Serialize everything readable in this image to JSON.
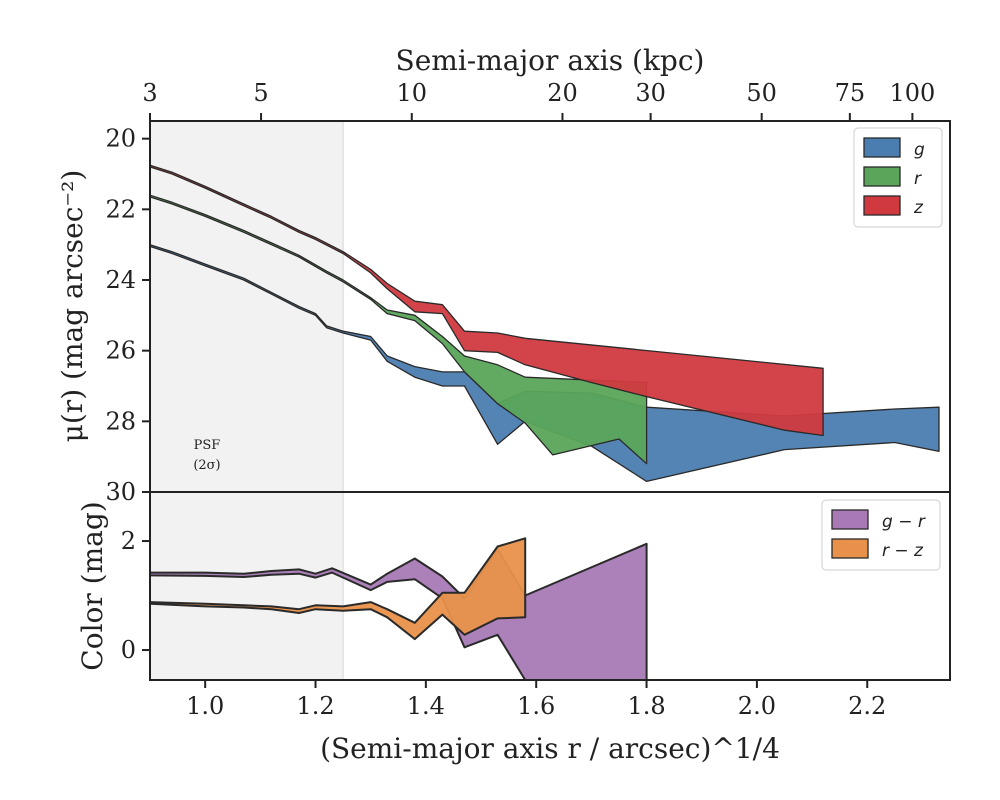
{
  "chart_data": [
    {
      "type": "area",
      "panel": "top",
      "ylabel": "μ(r) (mag arcsec⁻²)",
      "top_xlabel": "Semi-major axis (kpc)",
      "top_ticks": [
        "3",
        "5",
        "10",
        "20",
        "30",
        "50",
        "75",
        "100"
      ],
      "top_tick_values_kpc": [
        3,
        5,
        10,
        20,
        30,
        50,
        75,
        100
      ],
      "xlim": [
        0.9,
        2.35
      ],
      "ylim": [
        30,
        19.5
      ],
      "y_ticks": [
        "20",
        "22",
        "24",
        "26",
        "28",
        "30"
      ],
      "y_tick_values": [
        20,
        22,
        24,
        26,
        28,
        30
      ],
      "legend": [
        "g",
        "r",
        "z"
      ],
      "legend_position": "top-right",
      "psf_label": [
        "PSF",
        "(2σ)"
      ],
      "psf_x_max": 1.25,
      "series": [
        {
          "name": "g",
          "color": "#4a7db0",
          "upper": [
            [
              0.9,
              23.0
            ],
            [
              0.94,
              23.2
            ],
            [
              1.0,
              23.55
            ],
            [
              1.07,
              23.95
            ],
            [
              1.12,
              24.35
            ],
            [
              1.17,
              24.75
            ],
            [
              1.2,
              24.95
            ],
            [
              1.22,
              25.3
            ],
            [
              1.25,
              25.45
            ],
            [
              1.3,
              25.6
            ],
            [
              1.33,
              26.15
            ],
            [
              1.38,
              26.45
            ],
            [
              1.43,
              26.6
            ],
            [
              1.47,
              26.6
            ],
            [
              1.53,
              27.5
            ],
            [
              1.58,
              27.15
            ],
            [
              1.7,
              27.2
            ],
            [
              1.8,
              27.6
            ],
            [
              2.05,
              27.85
            ],
            [
              2.25,
              27.65
            ],
            [
              2.33,
              27.6
            ]
          ],
          "lower": [
            [
              0.9,
              23.05
            ],
            [
              0.94,
              23.25
            ],
            [
              1.0,
              23.6
            ],
            [
              1.07,
              24.0
            ],
            [
              1.12,
              24.4
            ],
            [
              1.17,
              24.8
            ],
            [
              1.2,
              25.0
            ],
            [
              1.22,
              25.35
            ],
            [
              1.25,
              25.5
            ],
            [
              1.3,
              25.7
            ],
            [
              1.33,
              26.3
            ],
            [
              1.38,
              26.75
            ],
            [
              1.43,
              27.0
            ],
            [
              1.47,
              27.0
            ],
            [
              1.53,
              28.65
            ],
            [
              1.58,
              28.0
            ],
            [
              1.7,
              28.7
            ],
            [
              1.8,
              29.7
            ],
            [
              2.05,
              28.8
            ],
            [
              2.25,
              28.6
            ],
            [
              2.33,
              28.85
            ]
          ]
        },
        {
          "name": "r",
          "color": "#5aa55a",
          "upper": [
            [
              0.9,
              21.6
            ],
            [
              0.94,
              21.8
            ],
            [
              1.0,
              22.15
            ],
            [
              1.07,
              22.6
            ],
            [
              1.12,
              22.95
            ],
            [
              1.17,
              23.3
            ],
            [
              1.22,
              23.75
            ],
            [
              1.25,
              24.0
            ],
            [
              1.3,
              24.5
            ],
            [
              1.33,
              24.85
            ],
            [
              1.38,
              25.0
            ],
            [
              1.43,
              25.6
            ],
            [
              1.47,
              26.15
            ],
            [
              1.53,
              26.4
            ],
            [
              1.58,
              26.75
            ],
            [
              1.8,
              26.9
            ]
          ],
          "lower": [
            [
              0.9,
              21.65
            ],
            [
              0.94,
              21.85
            ],
            [
              1.0,
              22.2
            ],
            [
              1.07,
              22.65
            ],
            [
              1.12,
              23.0
            ],
            [
              1.17,
              23.35
            ],
            [
              1.22,
              23.8
            ],
            [
              1.25,
              24.05
            ],
            [
              1.3,
              24.55
            ],
            [
              1.33,
              24.95
            ],
            [
              1.38,
              25.15
            ],
            [
              1.43,
              25.8
            ],
            [
              1.47,
              26.6
            ],
            [
              1.53,
              27.5
            ],
            [
              1.58,
              28.05
            ],
            [
              1.63,
              28.95
            ],
            [
              1.75,
              28.5
            ],
            [
              1.8,
              29.2
            ]
          ]
        },
        {
          "name": "z",
          "color": "#d03a3f",
          "upper": [
            [
              0.9,
              20.75
            ],
            [
              0.94,
              20.95
            ],
            [
              1.0,
              21.35
            ],
            [
              1.07,
              21.85
            ],
            [
              1.12,
              22.2
            ],
            [
              1.17,
              22.6
            ],
            [
              1.2,
              22.8
            ],
            [
              1.25,
              23.2
            ],
            [
              1.3,
              23.7
            ],
            [
              1.33,
              24.1
            ],
            [
              1.38,
              24.6
            ],
            [
              1.43,
              24.7
            ],
            [
              1.47,
              25.45
            ],
            [
              1.53,
              25.5
            ],
            [
              1.58,
              25.65
            ],
            [
              2.12,
              26.5
            ]
          ],
          "lower": [
            [
              0.9,
              20.8
            ],
            [
              0.94,
              21.0
            ],
            [
              1.0,
              21.4
            ],
            [
              1.07,
              21.9
            ],
            [
              1.12,
              22.25
            ],
            [
              1.17,
              22.65
            ],
            [
              1.2,
              22.85
            ],
            [
              1.25,
              23.25
            ],
            [
              1.3,
              23.8
            ],
            [
              1.33,
              24.25
            ],
            [
              1.38,
              24.9
            ],
            [
              1.43,
              24.95
            ],
            [
              1.47,
              26.0
            ],
            [
              1.53,
              26.05
            ],
            [
              1.58,
              26.4
            ],
            [
              1.7,
              26.9
            ],
            [
              1.8,
              27.3
            ],
            [
              2.05,
              28.25
            ],
            [
              2.12,
              28.4
            ]
          ]
        }
      ]
    },
    {
      "type": "area",
      "panel": "bottom",
      "xlabel": "(Semi-major axis r / arcsec)^1/4",
      "ylabel": "Color (mag)",
      "xlim": [
        0.9,
        2.35
      ],
      "ylim": [
        -0.55,
        2.9
      ],
      "x_ticks": [
        "1.0",
        "1.2",
        "1.4",
        "1.6",
        "1.8",
        "2.0",
        "2.2"
      ],
      "x_tick_values": [
        1.0,
        1.2,
        1.4,
        1.6,
        1.8,
        2.0,
        2.2
      ],
      "y_ticks": [
        "0",
        "2"
      ],
      "y_tick_values": [
        0,
        2
      ],
      "legend": [
        "g − r",
        "r − z"
      ],
      "legend_position": "top-right",
      "series": [
        {
          "name": "g − r",
          "color": "#a879b5",
          "upper": [
            [
              0.9,
              1.42
            ],
            [
              1.0,
              1.42
            ],
            [
              1.07,
              1.4
            ],
            [
              1.12,
              1.45
            ],
            [
              1.17,
              1.48
            ],
            [
              1.2,
              1.4
            ],
            [
              1.23,
              1.5
            ],
            [
              1.3,
              1.2
            ],
            [
              1.33,
              1.4
            ],
            [
              1.38,
              1.68
            ],
            [
              1.43,
              1.35
            ],
            [
              1.47,
              0.95
            ],
            [
              1.53,
              1.85
            ],
            [
              1.58,
              1.0
            ],
            [
              1.8,
              1.95
            ]
          ],
          "lower": [
            [
              0.9,
              1.37
            ],
            [
              1.0,
              1.36
            ],
            [
              1.07,
              1.34
            ],
            [
              1.12,
              1.38
            ],
            [
              1.17,
              1.4
            ],
            [
              1.2,
              1.33
            ],
            [
              1.23,
              1.42
            ],
            [
              1.3,
              1.1
            ],
            [
              1.33,
              1.25
            ],
            [
              1.38,
              1.3
            ],
            [
              1.43,
              0.95
            ],
            [
              1.47,
              0.05
            ],
            [
              1.53,
              0.28
            ],
            [
              1.58,
              -0.55
            ],
            [
              1.8,
              -0.55
            ]
          ]
        },
        {
          "name": "r − z",
          "color": "#e8914a",
          "upper": [
            [
              0.9,
              0.88
            ],
            [
              1.0,
              0.85
            ],
            [
              1.07,
              0.82
            ],
            [
              1.12,
              0.8
            ],
            [
              1.17,
              0.75
            ],
            [
              1.2,
              0.82
            ],
            [
              1.25,
              0.8
            ],
            [
              1.3,
              0.88
            ],
            [
              1.33,
              0.75
            ],
            [
              1.38,
              0.5
            ],
            [
              1.43,
              1.05
            ],
            [
              1.47,
              1.05
            ],
            [
              1.53,
              1.9
            ],
            [
              1.58,
              2.05
            ]
          ],
          "lower": [
            [
              0.9,
              0.85
            ],
            [
              1.0,
              0.8
            ],
            [
              1.07,
              0.78
            ],
            [
              1.12,
              0.75
            ],
            [
              1.17,
              0.68
            ],
            [
              1.2,
              0.75
            ],
            [
              1.25,
              0.72
            ],
            [
              1.3,
              0.75
            ],
            [
              1.33,
              0.6
            ],
            [
              1.38,
              0.2
            ],
            [
              1.43,
              0.65
            ],
            [
              1.47,
              0.28
            ],
            [
              1.53,
              0.58
            ],
            [
              1.58,
              0.6
            ]
          ]
        }
      ]
    }
  ]
}
